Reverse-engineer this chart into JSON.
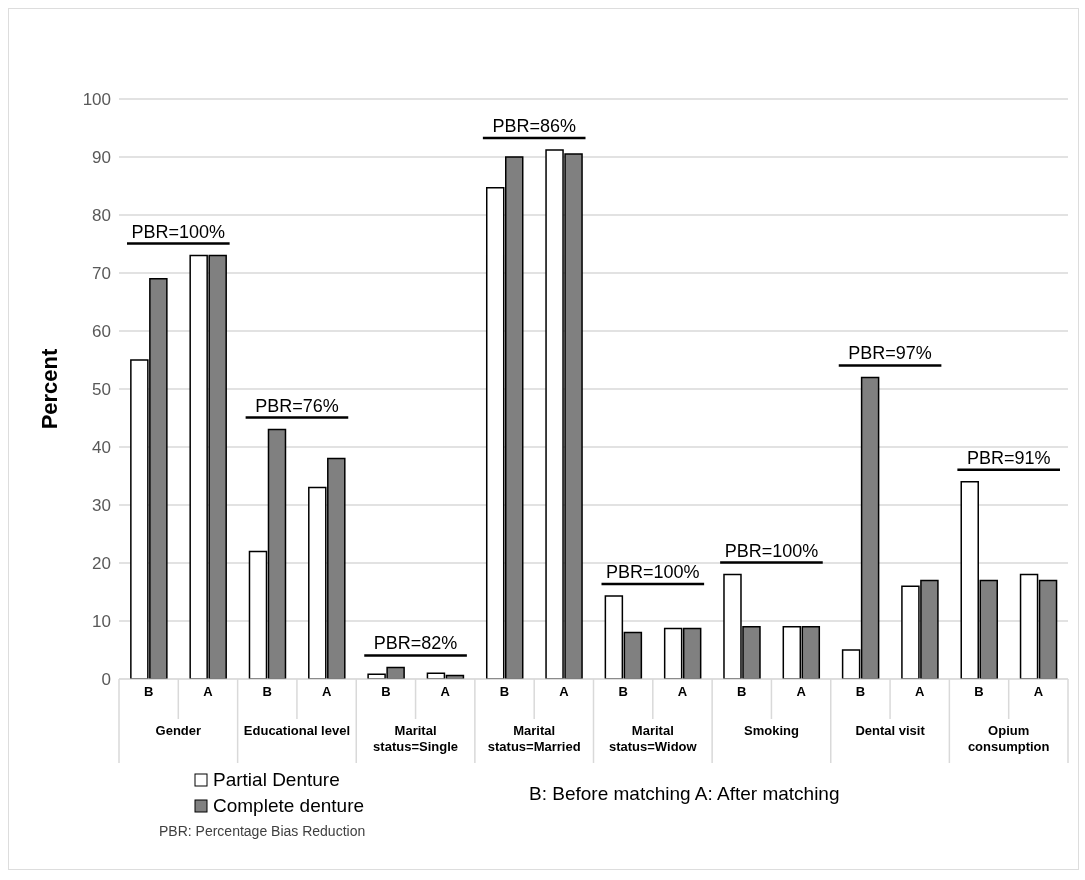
{
  "chart_data": {
    "type": "bar",
    "ylabel": "Percent",
    "categories": [
      "B",
      "A",
      "B",
      "A",
      "B",
      "A",
      "B",
      "A",
      "B",
      "A",
      "B",
      "A",
      "B",
      "A",
      "B",
      "A"
    ],
    "series": [
      {
        "name": "Partial Denture",
        "color": "#ffffff",
        "values": [
          55,
          73,
          22,
          33,
          0.8,
          1,
          84.7,
          91.2,
          14.3,
          8.7,
          18,
          9,
          5,
          16,
          34,
          18
        ]
      },
      {
        "name": "Complete denture",
        "color": "#808080",
        "values": [
          69,
          73,
          43,
          38,
          2,
          0.6,
          90,
          90.5,
          8,
          8.7,
          9,
          9,
          52,
          17,
          17,
          17
        ]
      }
    ],
    "ylim": [
      0,
      100
    ],
    "yticks": [
      0,
      10,
      20,
      30,
      40,
      50,
      60,
      70,
      80,
      90,
      100
    ],
    "grid": "y",
    "legend": "bottom",
    "annotations": [
      "Gender",
      "Educational level",
      "Marital status=Single",
      "Marital status=Married",
      "Marital status=Widow",
      "Smoking",
      "Dental visit",
      "Opium consumption",
      "PBR=100%",
      "PBR=76%",
      "PBR=82%",
      "PBR=86%",
      "PBR=100%",
      "PBR=100%",
      "PBR=97%",
      "PBR=91%",
      "B: Before matching  A: After matching",
      "PBR: Percentage Bias Reduction"
    ]
  }
}
